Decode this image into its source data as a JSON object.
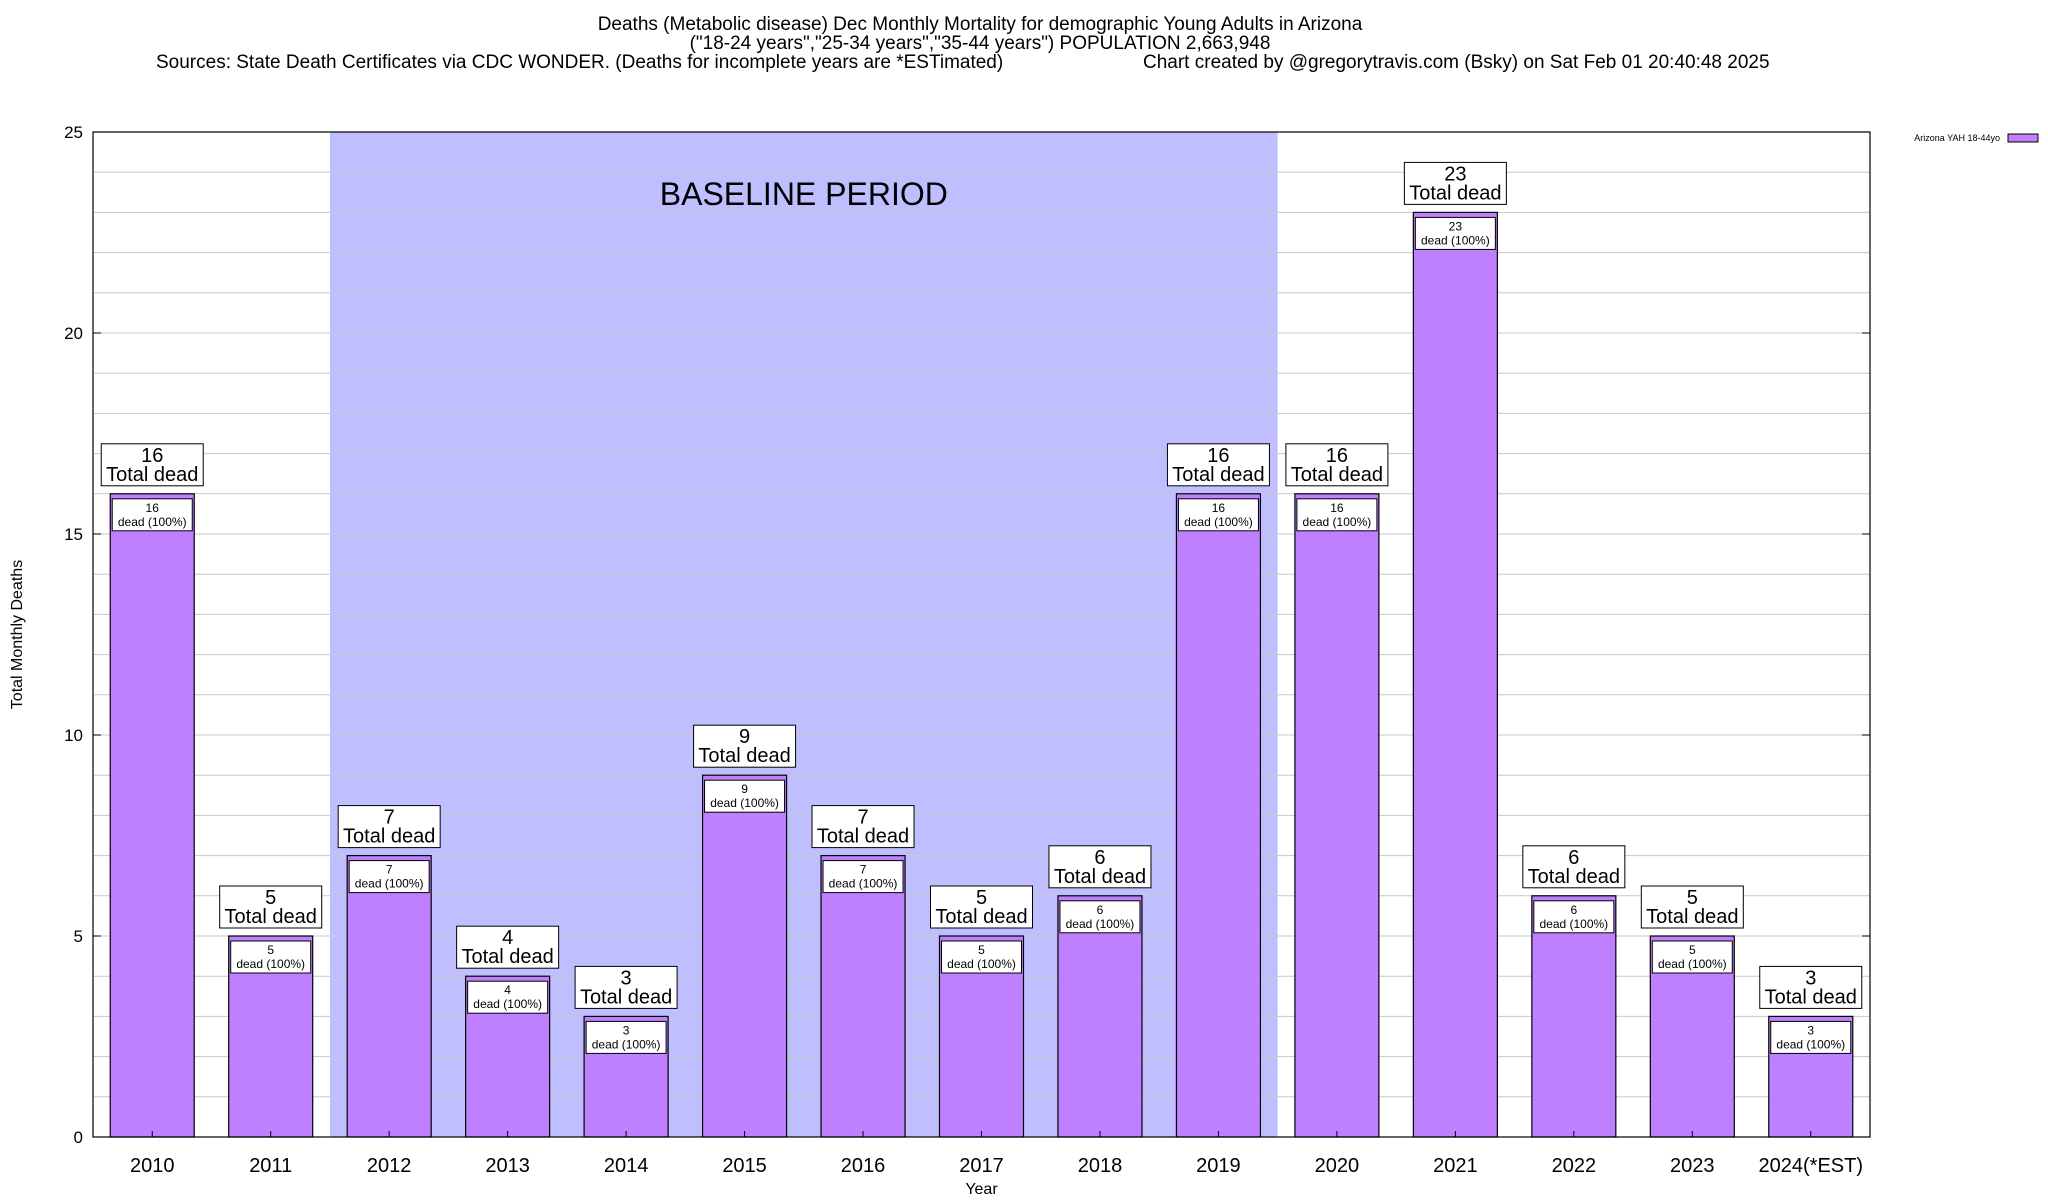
{
  "header": {
    "title_line1": "Deaths (Metabolic disease) Dec Monthly Mortality for demographic Young Adults in Arizona",
    "title_line2": "(\"18-24 years\",\"25-34 years\",\"35-44 years\") POPULATION 2,663,948",
    "sources": "Sources: State Death Certificates via CDC WONDER. (Deaths for incomplete years are *ESTimated)",
    "credit": "Chart created by @gregorytravis.com (Bsky) on Sat Feb 01 20:40:48 2025"
  },
  "chart_data": {
    "type": "bar",
    "xlabel": "Year",
    "ylabel": "Total Monthly Deaths",
    "ylim": [
      0,
      25
    ],
    "yticks": [
      0,
      5,
      10,
      15,
      20,
      25
    ],
    "categories": [
      "2010",
      "2011",
      "2012",
      "2013",
      "2014",
      "2015",
      "2016",
      "2017",
      "2018",
      "2019",
      "2020",
      "2021",
      "2022",
      "2023",
      "2024(*EST)"
    ],
    "series": [
      {
        "name": "Arizona YAH 18-44yo",
        "values": [
          16,
          5,
          7,
          4,
          3,
          9,
          7,
          5,
          6,
          16,
          16,
          23,
          6,
          5,
          3
        ]
      }
    ],
    "bar_label_suffix": "Total dead",
    "inner_label_suffix": "dead (100%)",
    "baseline": {
      "label": "BASELINE PERIOD",
      "from": "2012",
      "to": "2019"
    },
    "grid": "horizontal",
    "legend_position": "top-right",
    "colors": {
      "bar": "#bf80ff",
      "baseline": "#bfbfff",
      "grid": "#c8c8c8"
    }
  }
}
